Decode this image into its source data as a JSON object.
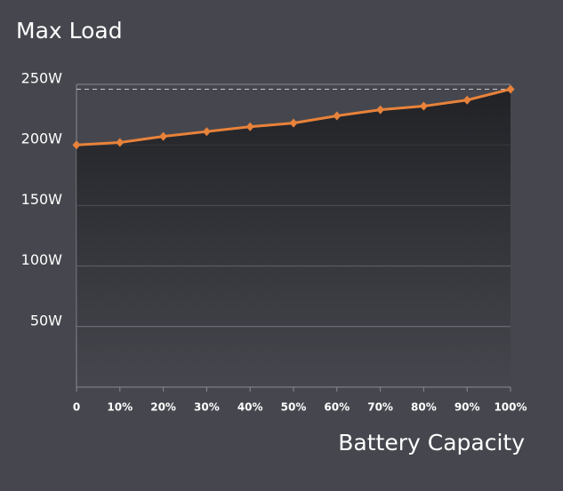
{
  "chart_data": {
    "type": "line",
    "title": "Max Load",
    "x_label": "Battery Capacity",
    "categories": [
      "0",
      "10%",
      "20%",
      "30%",
      "40%",
      "50%",
      "60%",
      "70%",
      "80%",
      "90%",
      "100%"
    ],
    "series": [
      {
        "name": "Max Load",
        "color": "#e8823a",
        "values": [
          200,
          202,
          207,
          211,
          215,
          218,
          224,
          229,
          232,
          237,
          246
        ]
      }
    ],
    "ylim": [
      0,
      250
    ],
    "yticks": [
      {
        "value": 50,
        "label": "50W"
      },
      {
        "value": 100,
        "label": "100W"
      },
      {
        "value": 150,
        "label": "150W"
      },
      {
        "value": 200,
        "label": "200W"
      },
      {
        "value": 250,
        "label": "250W"
      }
    ],
    "grid": true,
    "max_line": true
  }
}
